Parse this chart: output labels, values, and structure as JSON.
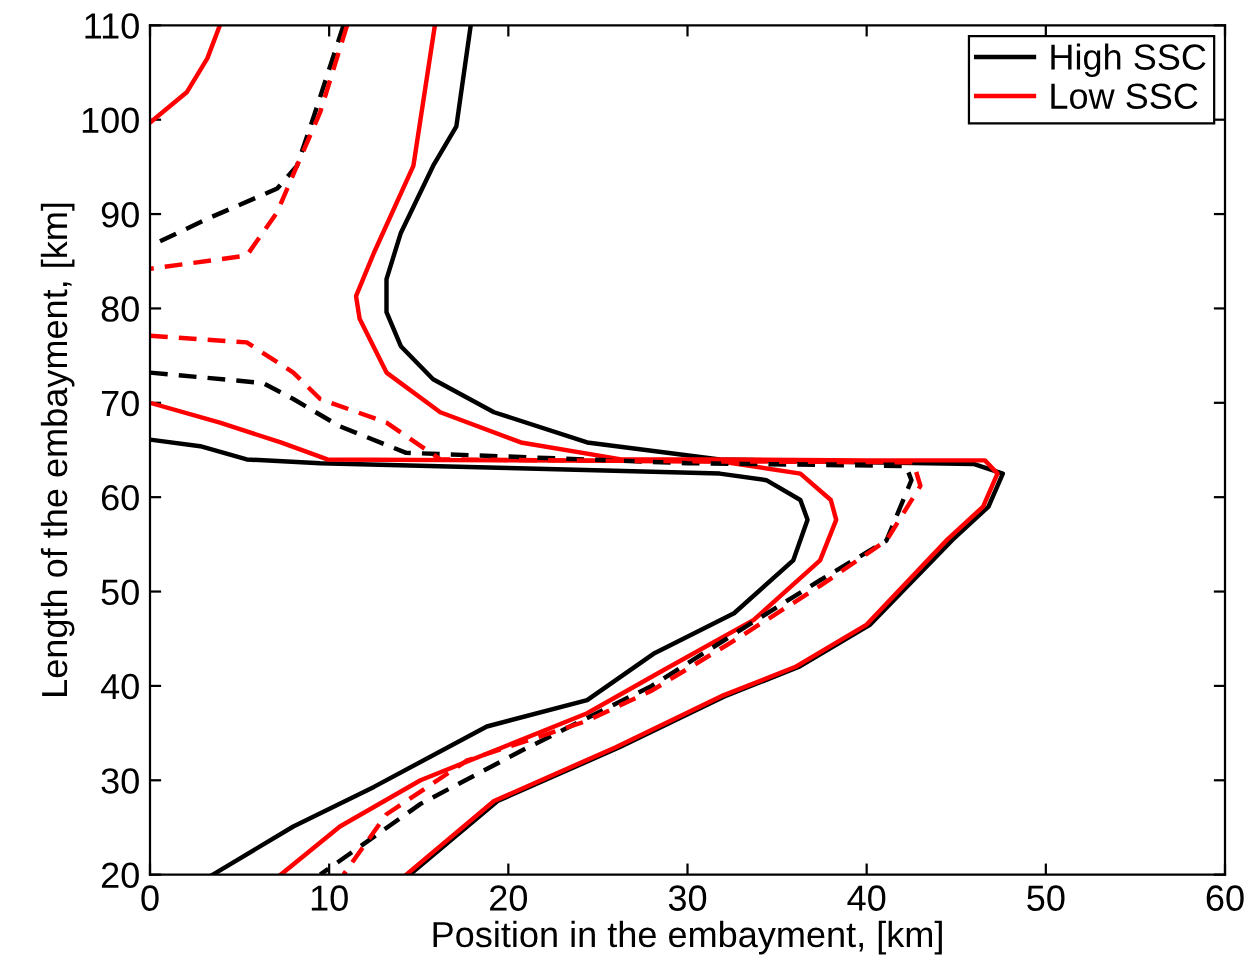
{
  "chart_data": {
    "type": "line",
    "xlabel": "Position in the embayment, [km]",
    "ylabel": "Length of the embayment, [km]",
    "xlim": [
      0,
      60
    ],
    "xticks": [
      0,
      10,
      20,
      30,
      40,
      50,
      60
    ],
    "ylim": [
      20,
      110
    ],
    "yticks": [
      20,
      30,
      40,
      50,
      60,
      70,
      80,
      90,
      100,
      110
    ],
    "grid": false,
    "legend": "top right",
    "marker": "none",
    "series": [
      {
        "name": "High SSC",
        "color": "#000000",
        "line_style": "solid",
        "x": [
          17.9,
          17.1,
          15.8,
          14.0,
          13.2,
          13.2,
          14.0,
          15.8,
          19.2,
          24.4,
          31.8,
          40.0,
          46.0,
          47.6,
          46.8,
          44.8,
          40.2,
          36.2,
          32.2,
          26.2,
          19.4,
          14.5
        ],
        "values": [
          110,
          99.3,
          95.1,
          88,
          83.1,
          79.6,
          76,
          72.5,
          69,
          65.8,
          64,
          63.7,
          63.5,
          62.5,
          59,
          55.5,
          46.5,
          42,
          39,
          33.5,
          27.8,
          20
        ]
      },
      {
        "name": "Low SSC",
        "color": "#ff0000",
        "line_style": "solid",
        "x": [
          15.9,
          14.7,
          12.5,
          11.5,
          11.7,
          13.2,
          16.2,
          20.7,
          26.3,
          31.8,
          40.0,
          46.6,
          47.3,
          46.5,
          44.5,
          40.0,
          36.0,
          32.0,
          26.0,
          19.2,
          14.3
        ],
        "values": [
          110,
          95.1,
          85.9,
          81.3,
          78.9,
          73.2,
          69,
          65.8,
          64,
          64,
          63.9,
          63.9,
          62.5,
          59,
          55.5,
          46.5,
          42,
          39,
          33.5,
          27.8,
          20
        ]
      },
      {
        "color": "#000000",
        "line_style": "solid",
        "x": [
          0,
          2.8,
          5.4,
          9.5,
          20.0,
          31.8,
          34.4,
          36.3,
          36.7,
          35.9,
          32.6,
          28.1,
          24.4,
          18.8,
          12.5,
          8.0,
          3.5
        ],
        "values": [
          66.1,
          65.4,
          64,
          63.6,
          63.1,
          62.5,
          61.8,
          59.7,
          57.6,
          53.3,
          47.7,
          43.4,
          38.5,
          35.7,
          29.3,
          25.1,
          20
        ]
      },
      {
        "color": "#ff0000",
        "line_style": "solid",
        "x": [
          0,
          3.9,
          7.3,
          9.9,
          20.0,
          31.8,
          36.3,
          38.0,
          38.3,
          37.4,
          33.7,
          28.5,
          24.4,
          15.1,
          10.6,
          7.3
        ],
        "values": [
          70,
          67.9,
          65.8,
          64,
          63.9,
          63.8,
          62.5,
          59.7,
          57.6,
          53.3,
          47,
          41.5,
          37.1,
          30,
          25.1,
          20
        ]
      },
      {
        "color": "#ff0000",
        "line_style": "solid",
        "x": [
          0,
          2.05,
          3.2,
          3.9
        ],
        "values": [
          99.7,
          102.9,
          106.5,
          110
        ]
      },
      {
        "color": "#000000",
        "line_style": "dashed",
        "x": [
          10.8,
          9.1,
          8.2,
          7.1,
          3.2,
          0
        ],
        "values": [
          110,
          100.1,
          95.1,
          92.7,
          89.5,
          86.6
        ]
      },
      {
        "color": "#ff0000",
        "line_style": "dashed",
        "x": [
          11.0,
          9.5,
          8.2,
          7.1,
          5.4,
          0
        ],
        "values": [
          110,
          100.8,
          95.1,
          90.2,
          85.6,
          84.2
        ]
      },
      {
        "color": "#000000",
        "line_style": "dashed",
        "x": [
          0,
          6.3,
          8.0,
          10.6,
          14.3,
          30.0,
          42.2,
          42.5,
          41.1,
          37.4,
          32.6,
          28.0,
          20.7,
          15.1,
          9.5
        ],
        "values": [
          73.2,
          72.1,
          70.4,
          67.5,
          64.7,
          63.6,
          63.3,
          61.8,
          55.4,
          51.2,
          45.5,
          40,
          33.1,
          27.5,
          20
        ]
      },
      {
        "color": "#ff0000",
        "line_style": "dashed",
        "x": [
          0,
          5.4,
          8.0,
          9.5,
          13.2,
          16.2,
          30.0,
          42.6,
          43.0,
          41.1,
          37.4,
          32.6,
          28.0,
          24.4,
          17.7,
          13.2,
          10.8
        ],
        "values": [
          77.1,
          76.4,
          73.2,
          70.4,
          67.9,
          64,
          63.8,
          63.7,
          61.2,
          55.4,
          50.6,
          44.8,
          39.5,
          36.3,
          32.1,
          26.4,
          20
        ]
      }
    ]
  }
}
